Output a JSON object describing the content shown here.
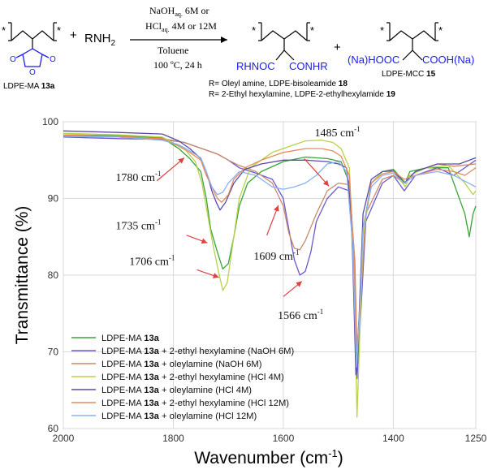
{
  "scheme": {
    "reactant": "LDPE-MA",
    "reactant_num": "13a",
    "reagent": "RNH",
    "reagent_sub": "2",
    "plus": "+",
    "cond1a": "NaOH",
    "cond1b": "aq.",
    "cond1c": " 6M or",
    "cond2a": "HCl",
    "cond2b": "aq.",
    "cond2c": " 4M or 12M",
    "cond3": "Toluene",
    "cond4": "100 ºC, 24 h",
    "prod1_left": "RHNOC",
    "prod1_right": "CONHR",
    "prod2_left": "(Na)HOOC",
    "prod2_right": "COOH(Na)",
    "prod2_label": "LDPE-MCC",
    "prod2_num": "15",
    "r1": "R= Oleyl amine, LDPE-bisoleamide ",
    "r1_num": "18",
    "r2": "R= 2-Ethyl hexylamine, LDPE-2-ethylhexylamide ",
    "r2_num": "19",
    "star": "*",
    "oxygen": "O",
    "accent": "#1a1aff"
  },
  "chart_data": {
    "type": "line",
    "title": "",
    "xlabel": "Wavenumber (cm",
    "xlabel_sup": "-1",
    "xlabel_end": ")",
    "ylabel": "Transmittance (%)",
    "xlim": [
      2000,
      1250
    ],
    "ylim": [
      60,
      100
    ],
    "x_ticks": [
      2000,
      1800,
      1600,
      1400,
      1250
    ],
    "y_ticks": [
      60,
      70,
      80,
      90,
      100
    ],
    "grid": true,
    "legend_position": "bottom-left",
    "series": [
      {
        "name": "LDPE-MA 13a",
        "color": "#3aa33a",
        "points": [
          [
            2000,
            98.3
          ],
          [
            1900,
            98.2
          ],
          [
            1820,
            97.9
          ],
          [
            1790,
            96.5
          ],
          [
            1770,
            95.2
          ],
          [
            1750,
            93.5
          ],
          [
            1740,
            90
          ],
          [
            1732,
            86
          ],
          [
            1720,
            83
          ],
          [
            1710,
            80.8
          ],
          [
            1700,
            81.5
          ],
          [
            1690,
            85
          ],
          [
            1680,
            89
          ],
          [
            1665,
            92
          ],
          [
            1640,
            93.5
          ],
          [
            1600,
            94.8
          ],
          [
            1560,
            95.4
          ],
          [
            1520,
            95.2
          ],
          [
            1495,
            94.8
          ],
          [
            1480,
            92
          ],
          [
            1472,
            80
          ],
          [
            1466,
            67
          ],
          [
            1462,
            73
          ],
          [
            1455,
            86
          ],
          [
            1440,
            92
          ],
          [
            1420,
            93.5
          ],
          [
            1400,
            93.8
          ],
          [
            1378,
            92
          ],
          [
            1370,
            93.5
          ],
          [
            1340,
            94
          ],
          [
            1300,
            94
          ],
          [
            1270,
            88
          ],
          [
            1262,
            85
          ],
          [
            1255,
            88
          ],
          [
            1250,
            89
          ]
        ]
      },
      {
        "name": "LDPE-MA 13a + 2-ethyl hexylamine (NaOH 6M)",
        "color": "#6a5acd",
        "points": [
          [
            2000,
            98
          ],
          [
            1900,
            97.8
          ],
          [
            1820,
            97.7
          ],
          [
            1780,
            97.3
          ],
          [
            1760,
            96.8
          ],
          [
            1740,
            96.3
          ],
          [
            1720,
            95.8
          ],
          [
            1700,
            95
          ],
          [
            1680,
            94
          ],
          [
            1650,
            93.3
          ],
          [
            1620,
            92.5
          ],
          [
            1600,
            90
          ],
          [
            1590,
            86
          ],
          [
            1580,
            82
          ],
          [
            1570,
            80
          ],
          [
            1560,
            80.5
          ],
          [
            1550,
            83
          ],
          [
            1540,
            87
          ],
          [
            1520,
            90
          ],
          [
            1500,
            91.5
          ],
          [
            1480,
            91
          ],
          [
            1470,
            80
          ],
          [
            1466,
            66.5
          ],
          [
            1460,
            74
          ],
          [
            1450,
            87
          ],
          [
            1420,
            92
          ],
          [
            1400,
            93
          ],
          [
            1380,
            91
          ],
          [
            1360,
            93
          ],
          [
            1320,
            94
          ],
          [
            1290,
            93
          ],
          [
            1250,
            95
          ]
        ]
      },
      {
        "name": "LDPE-MA 13a + oleylamine (NaOH 6M)",
        "color": "#c98a6a",
        "points": [
          [
            2000,
            98.2
          ],
          [
            1900,
            98
          ],
          [
            1820,
            97.8
          ],
          [
            1780,
            97.3
          ],
          [
            1760,
            96.8
          ],
          [
            1740,
            96.3
          ],
          [
            1720,
            95.8
          ],
          [
            1700,
            95
          ],
          [
            1680,
            94.3
          ],
          [
            1650,
            93.5
          ],
          [
            1620,
            92
          ],
          [
            1600,
            89
          ],
          [
            1590,
            85.5
          ],
          [
            1580,
            83.5
          ],
          [
            1570,
            83.3
          ],
          [
            1560,
            84.5
          ],
          [
            1540,
            88
          ],
          [
            1520,
            91
          ],
          [
            1500,
            92
          ],
          [
            1480,
            91.8
          ],
          [
            1470,
            82
          ],
          [
            1466,
            70
          ],
          [
            1460,
            76
          ],
          [
            1450,
            88
          ],
          [
            1420,
            92.5
          ],
          [
            1400,
            93
          ],
          [
            1380,
            92
          ],
          [
            1360,
            93.5
          ],
          [
            1320,
            94.5
          ],
          [
            1290,
            94.2
          ],
          [
            1250,
            94.5
          ]
        ]
      },
      {
        "name": "LDPE-MA 13a + 2-ethyl hexylamine (HCl 4M)",
        "color": "#b8d24a",
        "points": [
          [
            2000,
            98.5
          ],
          [
            1900,
            98.3
          ],
          [
            1820,
            98
          ],
          [
            1780,
            96.5
          ],
          [
            1760,
            94.8
          ],
          [
            1748,
            92
          ],
          [
            1738,
            88
          ],
          [
            1728,
            84
          ],
          [
            1718,
            80.5
          ],
          [
            1710,
            78
          ],
          [
            1702,
            79
          ],
          [
            1692,
            84
          ],
          [
            1680,
            90
          ],
          [
            1660,
            94
          ],
          [
            1620,
            96
          ],
          [
            1580,
            97
          ],
          [
            1560,
            97.5
          ],
          [
            1530,
            97.6
          ],
          [
            1510,
            97.3
          ],
          [
            1495,
            96.5
          ],
          [
            1480,
            94
          ],
          [
            1472,
            82
          ],
          [
            1466,
            61.5
          ],
          [
            1462,
            70
          ],
          [
            1455,
            85
          ],
          [
            1440,
            92
          ],
          [
            1420,
            93.5
          ],
          [
            1400,
            93.6
          ],
          [
            1378,
            91.5
          ],
          [
            1370,
            93
          ],
          [
            1340,
            94
          ],
          [
            1300,
            94.3
          ],
          [
            1270,
            92
          ],
          [
            1255,
            90.5
          ],
          [
            1250,
            91
          ]
        ]
      },
      {
        "name": "LDPE-MA 13a + oleylamine (HCl 4M)",
        "color": "#5a4aa8",
        "points": [
          [
            2000,
            98.8
          ],
          [
            1900,
            98.6
          ],
          [
            1820,
            98.4
          ],
          [
            1790,
            97.5
          ],
          [
            1770,
            96.5
          ],
          [
            1750,
            95.2
          ],
          [
            1740,
            93.5
          ],
          [
            1730,
            91
          ],
          [
            1722,
            89.5
          ],
          [
            1715,
            88.5
          ],
          [
            1705,
            89.5
          ],
          [
            1690,
            92
          ],
          [
            1670,
            93.8
          ],
          [
            1640,
            94.5
          ],
          [
            1600,
            95
          ],
          [
            1560,
            95
          ],
          [
            1520,
            94.8
          ],
          [
            1500,
            94.5
          ],
          [
            1485,
            94
          ],
          [
            1476,
            88
          ],
          [
            1468,
            67
          ],
          [
            1462,
            75
          ],
          [
            1455,
            88
          ],
          [
            1440,
            92.5
          ],
          [
            1420,
            93.5
          ],
          [
            1400,
            93.6
          ],
          [
            1380,
            92
          ],
          [
            1360,
            93.5
          ],
          [
            1320,
            94.5
          ],
          [
            1300,
            94.5
          ],
          [
            1280,
            94.5
          ],
          [
            1250,
            95.3
          ]
        ]
      },
      {
        "name": "LDPE-MA 13a + 2-ethyl hexylamine (HCl 12M)",
        "color": "#e88a5a",
        "points": [
          [
            2000,
            98.3
          ],
          [
            1900,
            98.1
          ],
          [
            1820,
            97.8
          ],
          [
            1790,
            96.8
          ],
          [
            1770,
            96
          ],
          [
            1750,
            95
          ],
          [
            1740,
            93
          ],
          [
            1730,
            91.5
          ],
          [
            1720,
            90
          ],
          [
            1712,
            89.5
          ],
          [
            1700,
            90.5
          ],
          [
            1690,
            92.5
          ],
          [
            1670,
            94
          ],
          [
            1640,
            95
          ],
          [
            1600,
            96
          ],
          [
            1560,
            96.5
          ],
          [
            1530,
            96.5
          ],
          [
            1510,
            96.2
          ],
          [
            1495,
            95.5
          ],
          [
            1480,
            93
          ],
          [
            1472,
            83
          ],
          [
            1466,
            70
          ],
          [
            1460,
            77
          ],
          [
            1455,
            86
          ],
          [
            1440,
            92
          ],
          [
            1420,
            93.2
          ],
          [
            1400,
            93.5
          ],
          [
            1380,
            92.5
          ],
          [
            1360,
            93
          ],
          [
            1320,
            93.8
          ],
          [
            1290,
            93.5
          ],
          [
            1270,
            93
          ],
          [
            1250,
            94
          ]
        ]
      },
      {
        "name": "LDPE-MA 13a + oleylamine (HCl 12M)",
        "color": "#8ab0f0",
        "points": [
          [
            2000,
            98.1
          ],
          [
            1900,
            98
          ],
          [
            1820,
            97.6
          ],
          [
            1790,
            97
          ],
          [
            1770,
            96.2
          ],
          [
            1750,
            95.3
          ],
          [
            1740,
            93.5
          ],
          [
            1730,
            91.5
          ],
          [
            1720,
            90.5
          ],
          [
            1710,
            90.8
          ],
          [
            1700,
            92
          ],
          [
            1680,
            93.5
          ],
          [
            1650,
            93
          ],
          [
            1620,
            91.5
          ],
          [
            1600,
            91.2
          ],
          [
            1580,
            91.5
          ],
          [
            1560,
            92
          ],
          [
            1540,
            93
          ],
          [
            1520,
            94.5
          ],
          [
            1500,
            94.8
          ],
          [
            1485,
            93.5
          ],
          [
            1474,
            84
          ],
          [
            1467,
            68
          ],
          [
            1461,
            75
          ],
          [
            1455,
            86
          ],
          [
            1440,
            91.5
          ],
          [
            1420,
            93
          ],
          [
            1400,
            93.3
          ],
          [
            1380,
            92
          ],
          [
            1360,
            93
          ],
          [
            1320,
            93.5
          ],
          [
            1290,
            93
          ],
          [
            1250,
            91.5
          ]
        ]
      }
    ],
    "annotations": [
      {
        "label": "1780 cm",
        "sup": "-1",
        "x": 1780,
        "y": 95.3,
        "tip_x": 1780,
        "tip_y": 95.3,
        "tail_x": 1830,
        "tail_y": 92.3,
        "text_x": 1905,
        "text_y": 92.3
      },
      {
        "label": "1735 cm",
        "sup": "-1",
        "x": 1735,
        "y": 84.2,
        "tip_x": 1738,
        "tip_y": 84.2,
        "tail_x": 1776,
        "tail_y": 85.2,
        "text_x": 1905,
        "text_y": 86.0
      },
      {
        "label": "1706 cm",
        "sup": "-1",
        "x": 1706,
        "y": 79.7,
        "tip_x": 1717,
        "tip_y": 79.7,
        "tail_x": 1757,
        "tail_y": 80.7,
        "text_x": 1880,
        "text_y": 81.3
      },
      {
        "label": "1609 cm",
        "sup": "-1",
        "x": 1609,
        "y": 85.2,
        "tip_x": 1609,
        "tip_y": 89.1,
        "tail_x": 1630,
        "tail_y": 85.2,
        "text_x": 1654,
        "text_y": 82.0
      },
      {
        "label": "1566 cm",
        "sup": "-1",
        "x": 1566,
        "y": 79.2,
        "tip_x": 1566,
        "tip_y": 79.2,
        "tail_x": 1600,
        "tail_y": 77.2,
        "text_x": 1610,
        "text_y": 74.3
      },
      {
        "label": "1485 cm",
        "sup": "-1",
        "x": 1485,
        "y": 92.1,
        "tip_x": 1517,
        "tip_y": 91.6,
        "tail_x": 1562,
        "tail_y": 95.2,
        "text_x": 1543,
        "text_y": 98.1
      }
    ],
    "legend_bold": "13a"
  }
}
